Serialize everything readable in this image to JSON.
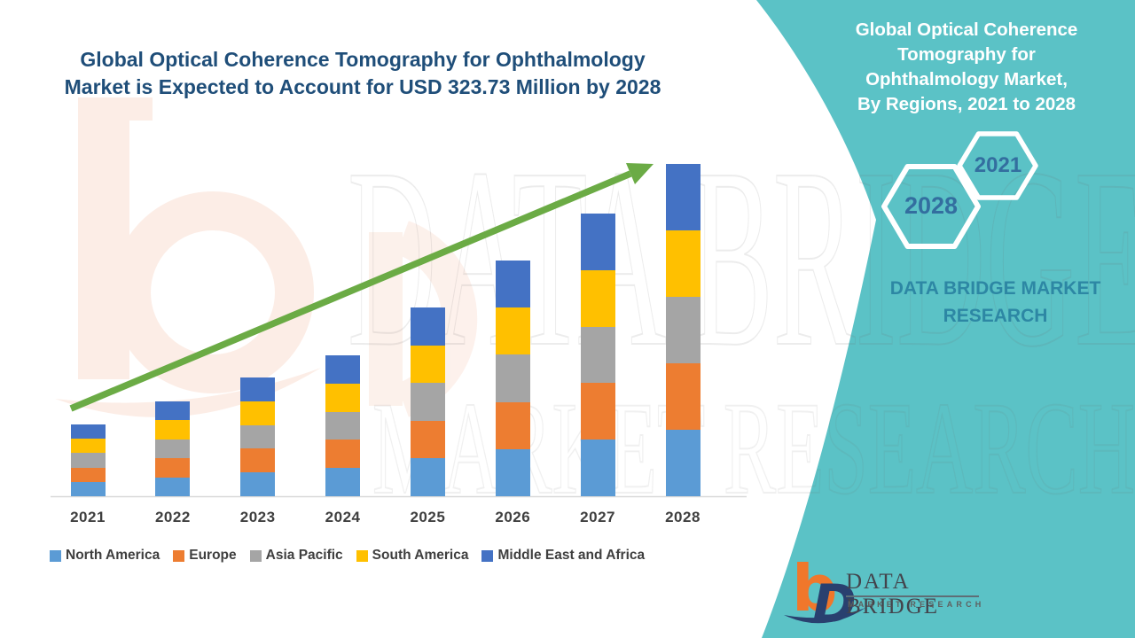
{
  "page": {
    "background": "#FFFFFF",
    "teal_panel_color": "#5BC2C6"
  },
  "header": {
    "line1": "Global Optical Coherence Tomography for Ophthalmology",
    "line2": "Market is Expected to Account for USD 323.73 Million by 2028",
    "color": "#1F4E79"
  },
  "chart_data": {
    "type": "bar",
    "stacked": true,
    "unit": "USD Million",
    "title": "Global Optical Coherence Tomography for Ophthalmology Market, By Regions, 2021 to 2028",
    "categories": [
      "2021",
      "2022",
      "2023",
      "2024",
      "2025",
      "2026",
      "2027",
      "2028"
    ],
    "totals": [
      69.9,
      92.4,
      115.7,
      137.3,
      183.9,
      229.6,
      275.4,
      323.73
    ],
    "series": [
      {
        "name": "North America",
        "color": "#5B9BD5",
        "values": [
          13.98,
          18.48,
          23.14,
          27.46,
          36.78,
          45.92,
          55.08,
          64.75
        ]
      },
      {
        "name": "Europe",
        "color": "#ED7D31",
        "values": [
          13.98,
          18.48,
          23.14,
          27.46,
          36.78,
          45.92,
          55.08,
          64.75
        ]
      },
      {
        "name": "Asia Pacific",
        "color": "#A5A5A5",
        "values": [
          13.98,
          18.48,
          23.14,
          27.46,
          36.78,
          45.92,
          55.08,
          64.75
        ]
      },
      {
        "name": "South America",
        "color": "#FFC000",
        "values": [
          13.98,
          18.48,
          23.14,
          27.46,
          36.78,
          45.92,
          55.08,
          64.75
        ]
      },
      {
        "name": "Middle East and Africa",
        "color": "#4472C4",
        "values": [
          13.98,
          18.48,
          23.14,
          27.46,
          36.78,
          45.92,
          55.08,
          64.75
        ]
      }
    ],
    "ylim": [
      0,
      340
    ],
    "grid": false,
    "legend_position": "bottom",
    "trend_arrow": true,
    "trend_arrow_color": "#6BAB45",
    "axis_line_color": "#D9D9D9",
    "tick_label_color": "#3F3F3F"
  },
  "side_panel": {
    "title_lines": [
      "Global Optical Coherence",
      "Tomography for",
      "Ophthalmology Market,",
      "By Regions, 2021 to 2028"
    ],
    "hexagons": [
      {
        "label": "2021"
      },
      {
        "label": "2028"
      }
    ],
    "hex_label_color": "#336E9F",
    "brand_lines": [
      "DATA BRIDGE MARKET",
      "RESEARCH"
    ],
    "brand_color": "#2D87A4"
  },
  "logo": {
    "glyph_b": "b",
    "glyph_d": "D",
    "title": "DATA BRIDGE",
    "subtitle": "MARKET RESEARCH",
    "orange": "#F0772B",
    "navy": "#29406F"
  },
  "watermark": {
    "big_text": "DATA BRIDGE",
    "small_text": "MARKET RESEARCH"
  }
}
